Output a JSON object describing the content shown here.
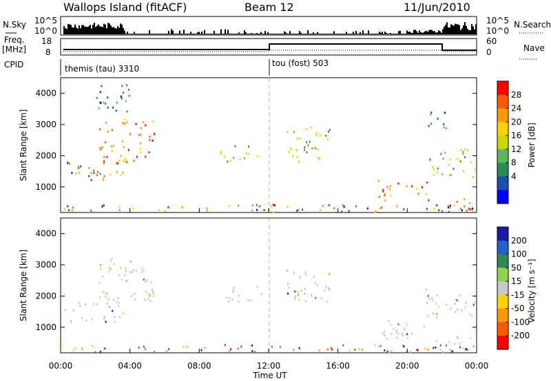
{
  "header": {
    "site": "Wallops Island (fitACF)",
    "beam": "Beam 12",
    "date": "11/Jun/2010"
  },
  "summary_panels": {
    "nsky_label": "N.Sky",
    "nsky_ticks": [
      "10^5",
      "10^0"
    ],
    "nsearch_label": "N.Search",
    "nsearch_ticks": [
      "10^5",
      "10^0"
    ],
    "freq_label_line1": "Freq.",
    "freq_label_line2": "[MHz]",
    "freq_ticks": [
      "18",
      "8"
    ],
    "nave_label": "Nave",
    "nave_ticks": [
      "60",
      "0"
    ],
    "cpid_label": "CPID",
    "cpid_modes": [
      {
        "name": "themis (tau) 3310",
        "start_hour": 0
      },
      {
        "name": "tou (fost) 503",
        "start_hour": 12
      }
    ]
  },
  "chart_data": [
    {
      "type": "heatmap",
      "title": "",
      "ylabel": "Slant Range [km]",
      "xlabel": "",
      "xlim": [
        0,
        24
      ],
      "ylim": [
        180,
        4500
      ],
      "yticks": [
        1000,
        2000,
        3000,
        4000
      ],
      "xticks": [
        0,
        4,
        8,
        12,
        16,
        20,
        24
      ],
      "colorbar": {
        "label": "Power [dB]",
        "ticks": [
          "28",
          "24",
          "20",
          "16",
          "12",
          "8",
          "4"
        ],
        "colors": [
          "#ff0000",
          "#ff5a00",
          "#ff9a00",
          "#ffd200",
          "#c8d800",
          "#5cb85c",
          "#2e8b57",
          "#1a4fb0",
          "#0000ff"
        ]
      },
      "regions": [
        {
          "t0": 0.2,
          "t1": 3.6,
          "r0": 1150,
          "r1": 1800,
          "level": "mixed"
        },
        {
          "t0": 2.2,
          "t1": 5.4,
          "r0": 1700,
          "r1": 3200,
          "level": "high"
        },
        {
          "t0": 2.0,
          "t1": 4.0,
          "r0": 3300,
          "r1": 4300,
          "level": "low"
        },
        {
          "t0": 9.2,
          "t1": 11.6,
          "r0": 1800,
          "r1": 2300,
          "level": "mid"
        },
        {
          "t0": 13.0,
          "t1": 15.5,
          "r0": 1800,
          "r1": 3000,
          "level": "mid"
        },
        {
          "t0": 18.3,
          "t1": 21.2,
          "r0": 550,
          "r1": 1200,
          "level": "high"
        },
        {
          "t0": 21.0,
          "t1": 23.9,
          "r0": 1300,
          "r1": 2200,
          "level": "mid"
        },
        {
          "t0": 21.2,
          "t1": 22.3,
          "r0": 2800,
          "r1": 3500,
          "level": "low"
        },
        {
          "t0": 21.5,
          "t1": 23.8,
          "r0": 180,
          "r1": 700,
          "level": "high"
        },
        {
          "t0": 0.0,
          "t1": 24.0,
          "r0": 180,
          "r1": 420,
          "level": "mixed"
        }
      ]
    },
    {
      "type": "heatmap",
      "title": "",
      "ylabel": "Slant Range [km]",
      "xlabel": "Time UT",
      "xlim": [
        0,
        24
      ],
      "ylim": [
        180,
        4500
      ],
      "yticks": [
        1000,
        2000,
        3000,
        4000
      ],
      "xticks": [
        0,
        4,
        8,
        12,
        16,
        20,
        24
      ],
      "xticklabels": [
        "00:00",
        "04:00",
        "08:00",
        "12:00",
        "16:00",
        "20:00",
        "00:00"
      ],
      "colorbar": {
        "label": "Velocity [m s⁻¹]",
        "ticks": [
          "200",
          "100",
          "50",
          "15",
          "-15",
          "-50",
          "-100",
          "-200"
        ],
        "colors": [
          "#1a1aa6",
          "#2a5fd0",
          "#2e8b57",
          "#8fd44a",
          "#c8c8c8",
          "#ffd200",
          "#ff9a00",
          "#ff5a00",
          "#ff0000"
        ]
      },
      "regions": [
        {
          "t0": 0.2,
          "t1": 3.6,
          "r0": 1150,
          "r1": 1800,
          "level": "ground"
        },
        {
          "t0": 2.2,
          "t1": 5.4,
          "r0": 1700,
          "r1": 3200,
          "level": "ground"
        },
        {
          "t0": 9.2,
          "t1": 11.6,
          "r0": 1800,
          "r1": 2300,
          "level": "ground"
        },
        {
          "t0": 13.0,
          "t1": 15.5,
          "r0": 1800,
          "r1": 3000,
          "level": "ground"
        },
        {
          "t0": 18.3,
          "t1": 21.2,
          "r0": 550,
          "r1": 1200,
          "level": "ground"
        },
        {
          "t0": 21.0,
          "t1": 23.9,
          "r0": 1300,
          "r1": 2200,
          "level": "ground"
        },
        {
          "t0": 21.5,
          "t1": 23.8,
          "r0": 180,
          "r1": 700,
          "level": "ground"
        },
        {
          "t0": 0.0,
          "t1": 24.0,
          "r0": 180,
          "r1": 420,
          "level": "mixed"
        }
      ]
    }
  ]
}
